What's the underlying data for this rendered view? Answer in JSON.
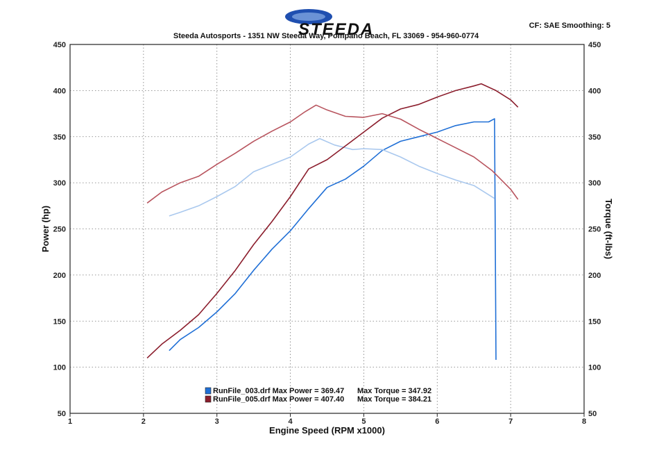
{
  "header": {
    "logo_text": "STEEDA",
    "address": "Steeda Autosports - 1351 NW Steeda Way, Pompano Beach, FL 33069 - 954-960-0774",
    "settings": "CF: SAE  Smoothing: 5"
  },
  "colors": {
    "run003_power": "#1f6fd6",
    "run003_torque": "#a9c8ee",
    "run005_power": "#8b1d2c",
    "run005_torque": "#b8545e",
    "logo_blue": "#1f4fb0",
    "grid": "#777777"
  },
  "chart_data": {
    "type": "line",
    "xlabel": "Engine Speed  (RPM x1000)",
    "ylabel": "Power (hp)",
    "y2label": "Torque (ft-lbs)",
    "xlim": [
      1,
      8
    ],
    "ylim": [
      50,
      450
    ],
    "y2lim": [
      50,
      450
    ],
    "x_ticks": [
      "1",
      "2",
      "3",
      "4",
      "5",
      "6",
      "7",
      "8"
    ],
    "y_ticks": [
      "50",
      "100",
      "150",
      "200",
      "250",
      "300",
      "350",
      "400",
      "450"
    ],
    "y2_ticks": [
      "50",
      "100",
      "150",
      "200",
      "250",
      "300",
      "350",
      "400",
      "450"
    ],
    "grid": true,
    "legend_position": "bottom-left",
    "series": [
      {
        "key": "run003_power",
        "name": "RunFile_003.drf Max Power = 369.47",
        "axis": "left",
        "points": [
          [
            2.35,
            118
          ],
          [
            2.5,
            130
          ],
          [
            2.75,
            143
          ],
          [
            3.0,
            160
          ],
          [
            3.25,
            180
          ],
          [
            3.5,
            205
          ],
          [
            3.75,
            228
          ],
          [
            4.0,
            248
          ],
          [
            4.25,
            272
          ],
          [
            4.5,
            295
          ],
          [
            4.75,
            304
          ],
          [
            5.0,
            318
          ],
          [
            5.25,
            335
          ],
          [
            5.5,
            345
          ],
          [
            5.75,
            350
          ],
          [
            6.0,
            355
          ],
          [
            6.25,
            362
          ],
          [
            6.5,
            366
          ],
          [
            6.7,
            366
          ],
          [
            6.78,
            369.47
          ],
          [
            6.79,
            250
          ],
          [
            6.8,
            108
          ]
        ]
      },
      {
        "key": "run003_torque",
        "name": "Max Torque = 347.92",
        "axis": "right",
        "points": [
          [
            2.35,
            264
          ],
          [
            2.5,
            268
          ],
          [
            2.75,
            275
          ],
          [
            3.0,
            285
          ],
          [
            3.25,
            296
          ],
          [
            3.5,
            312
          ],
          [
            3.75,
            320
          ],
          [
            4.0,
            328
          ],
          [
            4.25,
            342
          ],
          [
            4.4,
            347.92
          ],
          [
            4.6,
            341
          ],
          [
            4.85,
            336
          ],
          [
            5.0,
            337
          ],
          [
            5.25,
            336
          ],
          [
            5.5,
            328
          ],
          [
            5.75,
            318
          ],
          [
            6.0,
            310
          ],
          [
            6.25,
            303
          ],
          [
            6.5,
            297
          ],
          [
            6.78,
            283
          ]
        ]
      },
      {
        "key": "run005_power",
        "name": "RunFile_005.drf Max Power = 407.40",
        "axis": "left",
        "points": [
          [
            2.05,
            110
          ],
          [
            2.25,
            125
          ],
          [
            2.5,
            140
          ],
          [
            2.75,
            157
          ],
          [
            3.0,
            180
          ],
          [
            3.25,
            205
          ],
          [
            3.5,
            233
          ],
          [
            3.75,
            258
          ],
          [
            4.0,
            285
          ],
          [
            4.25,
            315
          ],
          [
            4.5,
            325
          ],
          [
            4.75,
            340
          ],
          [
            5.0,
            355
          ],
          [
            5.25,
            370
          ],
          [
            5.5,
            380
          ],
          [
            5.75,
            385
          ],
          [
            6.0,
            393
          ],
          [
            6.25,
            400
          ],
          [
            6.5,
            405
          ],
          [
            6.6,
            407.4
          ],
          [
            6.8,
            400
          ],
          [
            7.0,
            390
          ],
          [
            7.1,
            382
          ]
        ]
      },
      {
        "key": "run005_torque",
        "name": "Max Torque = 384.21",
        "axis": "right",
        "points": [
          [
            2.05,
            278
          ],
          [
            2.25,
            290
          ],
          [
            2.5,
            300
          ],
          [
            2.75,
            307
          ],
          [
            3.0,
            320
          ],
          [
            3.25,
            332
          ],
          [
            3.5,
            345
          ],
          [
            3.75,
            356
          ],
          [
            4.0,
            366
          ],
          [
            4.2,
            377
          ],
          [
            4.35,
            384.21
          ],
          [
            4.5,
            379
          ],
          [
            4.75,
            372
          ],
          [
            5.0,
            371
          ],
          [
            5.25,
            375
          ],
          [
            5.5,
            369
          ],
          [
            5.75,
            358
          ],
          [
            6.0,
            348
          ],
          [
            6.25,
            338
          ],
          [
            6.5,
            328
          ],
          [
            6.75,
            313
          ],
          [
            7.0,
            293
          ],
          [
            7.1,
            282
          ]
        ]
      }
    ],
    "legend": [
      {
        "swatch": "run003_power",
        "label": "RunFile_003.drf Max Power = 369.47",
        "torque": "Max Torque = 347.92"
      },
      {
        "swatch": "run005_power",
        "label": "RunFile_005.drf Max Power = 407.40",
        "torque": "Max Torque = 384.21"
      }
    ]
  }
}
